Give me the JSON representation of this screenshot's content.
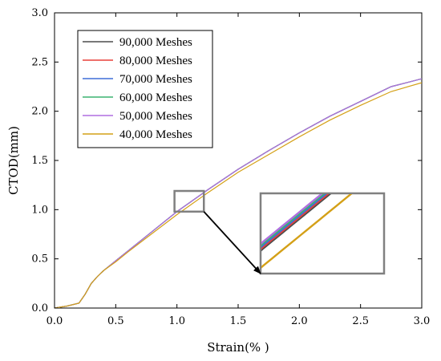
{
  "chart_data": {
    "type": "line",
    "xlabel": "Strain(% )",
    "ylabel": "CTOD(mm)",
    "xlim": [
      0.0,
      3.0
    ],
    "ylim": [
      0.0,
      3.0
    ],
    "xticks": [
      "0.0",
      "0.5",
      "1.0",
      "1.5",
      "2.0",
      "2.5",
      "3.0"
    ],
    "yticks": [
      "0.0",
      "0.5",
      "1.0",
      "1.5",
      "2.0",
      "2.5",
      "3.0"
    ],
    "grid": false,
    "legend_position": "top-left",
    "x": [
      0.0,
      0.1,
      0.2,
      0.25,
      0.3,
      0.35,
      0.4,
      0.5,
      0.6,
      0.8,
      1.0,
      1.25,
      1.5,
      1.75,
      2.0,
      2.25,
      2.5,
      2.75,
      3.0
    ],
    "series": [
      {
        "name": "90,000 Meshes",
        "color": "#4d4d4d",
        "values": [
          0.0,
          0.02,
          0.05,
          0.14,
          0.25,
          0.32,
          0.38,
          0.48,
          0.58,
          0.78,
          0.98,
          1.2,
          1.41,
          1.6,
          1.78,
          1.95,
          2.1,
          2.25,
          2.33
        ]
      },
      {
        "name": "80,000 Meshes",
        "color": "#e8403a",
        "values": [
          0.0,
          0.02,
          0.05,
          0.14,
          0.25,
          0.32,
          0.38,
          0.48,
          0.58,
          0.78,
          0.98,
          1.2,
          1.41,
          1.6,
          1.78,
          1.95,
          2.1,
          2.25,
          2.33
        ]
      },
      {
        "name": "70,000 Meshes",
        "color": "#3f6fd8",
        "values": [
          0.0,
          0.02,
          0.05,
          0.14,
          0.25,
          0.32,
          0.38,
          0.48,
          0.58,
          0.78,
          0.98,
          1.2,
          1.41,
          1.6,
          1.78,
          1.95,
          2.1,
          2.25,
          2.33
        ]
      },
      {
        "name": "60,000 Meshes",
        "color": "#3cb371",
        "values": [
          0.0,
          0.02,
          0.05,
          0.14,
          0.25,
          0.32,
          0.38,
          0.48,
          0.58,
          0.78,
          0.98,
          1.2,
          1.41,
          1.6,
          1.78,
          1.95,
          2.1,
          2.25,
          2.33
        ]
      },
      {
        "name": "50,000 Meshes",
        "color": "#b06fe0",
        "values": [
          0.0,
          0.02,
          0.05,
          0.14,
          0.25,
          0.32,
          0.38,
          0.48,
          0.58,
          0.78,
          0.98,
          1.2,
          1.41,
          1.6,
          1.78,
          1.95,
          2.1,
          2.25,
          2.33
        ]
      },
      {
        "name": "40,000 Meshes",
        "color": "#d4a017",
        "values": [
          0.0,
          0.02,
          0.05,
          0.14,
          0.25,
          0.32,
          0.38,
          0.47,
          0.57,
          0.76,
          0.95,
          1.17,
          1.38,
          1.56,
          1.74,
          1.91,
          2.06,
          2.2,
          2.29
        ]
      }
    ],
    "zoom_region": {
      "x": [
        0.98,
        1.22
      ],
      "y": [
        0.98,
        1.19
      ]
    }
  }
}
